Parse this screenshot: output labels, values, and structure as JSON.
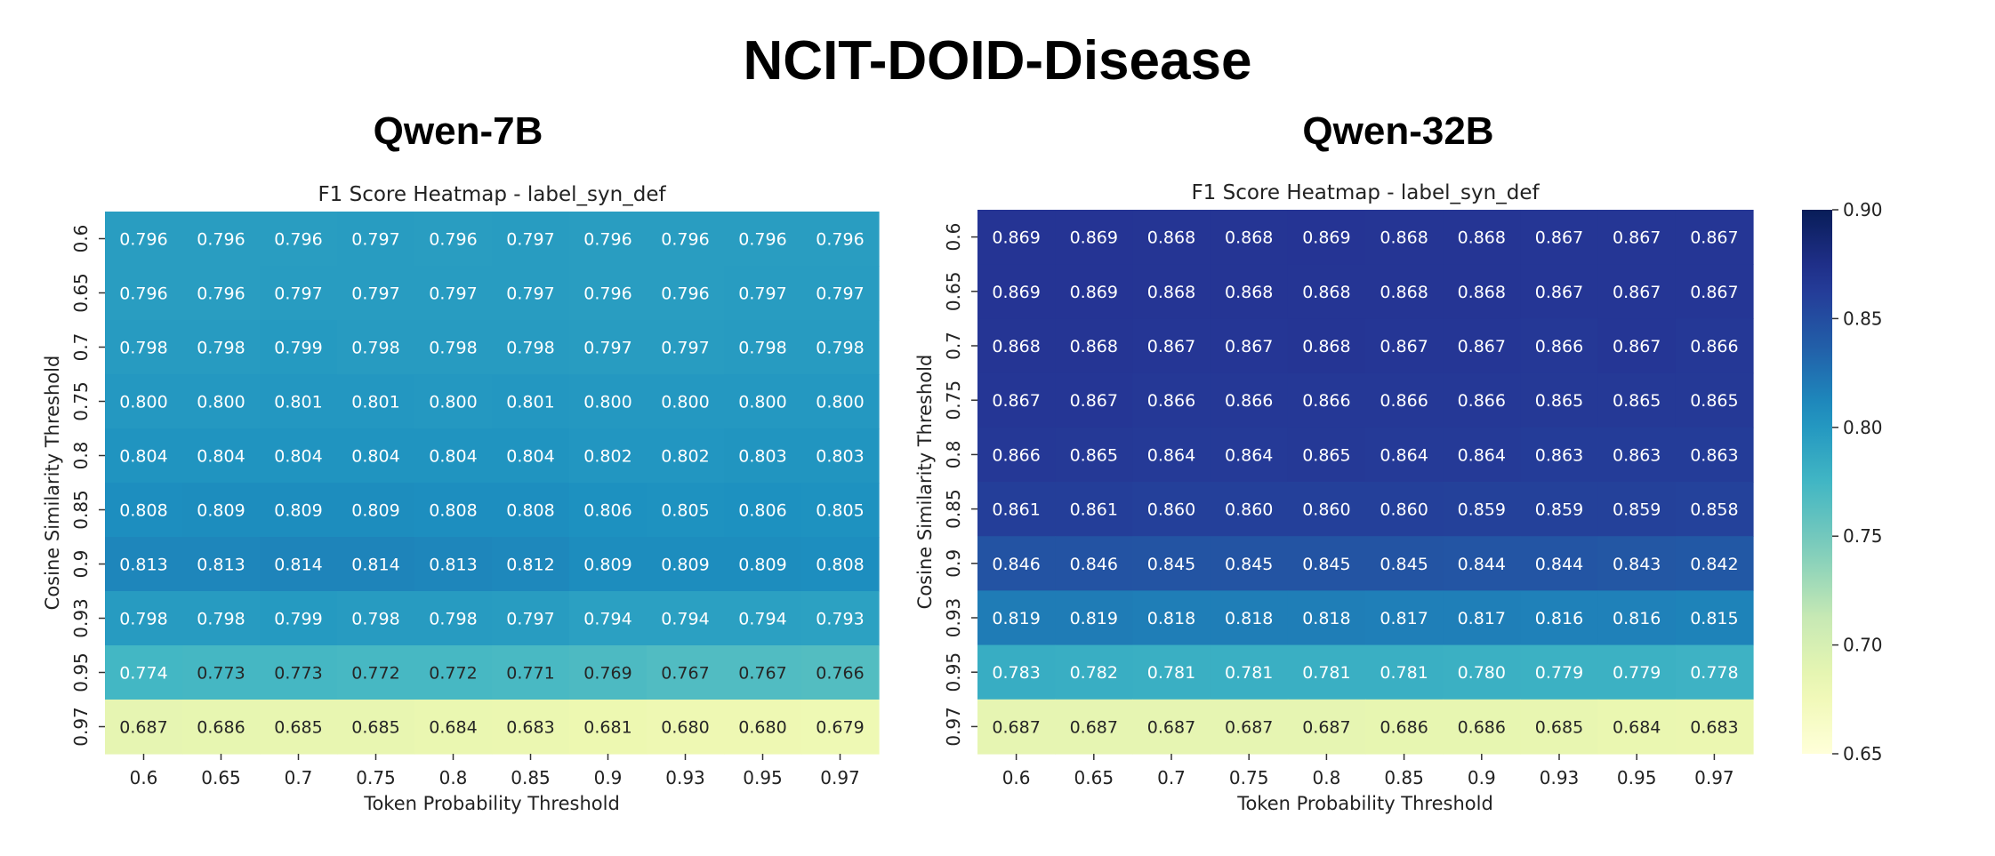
{
  "title": "NCIT-DOID-Disease",
  "chart_data": [
    {
      "type": "heatmap",
      "model": "Qwen-7B",
      "title": "F1 Score Heatmap - label_syn_def",
      "xlabel": "Token Probability Threshold",
      "ylabel": "Cosine Similarity Threshold",
      "x_categories": [
        "0.6",
        "0.65",
        "0.7",
        "0.75",
        "0.8",
        "0.85",
        "0.9",
        "0.93",
        "0.95",
        "0.97"
      ],
      "y_categories": [
        "0.6",
        "0.65",
        "0.7",
        "0.75",
        "0.8",
        "0.85",
        "0.9",
        "0.93",
        "0.95",
        "0.97"
      ],
      "values": [
        [
          0.796,
          0.796,
          0.796,
          0.797,
          0.796,
          0.797,
          0.796,
          0.796,
          0.796,
          0.796
        ],
        [
          0.796,
          0.796,
          0.797,
          0.797,
          0.797,
          0.797,
          0.796,
          0.796,
          0.797,
          0.797
        ],
        [
          0.798,
          0.798,
          0.799,
          0.798,
          0.798,
          0.798,
          0.797,
          0.797,
          0.798,
          0.798
        ],
        [
          0.8,
          0.8,
          0.801,
          0.801,
          0.8,
          0.801,
          0.8,
          0.8,
          0.8,
          0.8
        ],
        [
          0.804,
          0.804,
          0.804,
          0.804,
          0.804,
          0.804,
          0.802,
          0.802,
          0.803,
          0.803
        ],
        [
          0.808,
          0.809,
          0.809,
          0.809,
          0.808,
          0.808,
          0.806,
          0.805,
          0.806,
          0.805
        ],
        [
          0.813,
          0.813,
          0.814,
          0.814,
          0.813,
          0.812,
          0.809,
          0.809,
          0.809,
          0.808
        ],
        [
          0.798,
          0.798,
          0.799,
          0.798,
          0.798,
          0.797,
          0.794,
          0.794,
          0.794,
          0.793
        ],
        [
          0.774,
          0.773,
          0.773,
          0.772,
          0.772,
          0.771,
          0.769,
          0.767,
          0.767,
          0.766
        ],
        [
          0.687,
          0.686,
          0.685,
          0.685,
          0.684,
          0.683,
          0.681,
          0.68,
          0.68,
          0.679
        ]
      ],
      "colormap": "YlGnBu"
    },
    {
      "type": "heatmap",
      "model": "Qwen-32B",
      "title": "F1 Score Heatmap - label_syn_def",
      "xlabel": "Token Probability Threshold",
      "ylabel": "Cosine Similarity Threshold",
      "x_categories": [
        "0.6",
        "0.65",
        "0.7",
        "0.75",
        "0.8",
        "0.85",
        "0.9",
        "0.93",
        "0.95",
        "0.97"
      ],
      "y_categories": [
        "0.6",
        "0.65",
        "0.7",
        "0.75",
        "0.8",
        "0.85",
        "0.9",
        "0.93",
        "0.95",
        "0.97"
      ],
      "values": [
        [
          0.869,
          0.869,
          0.868,
          0.868,
          0.869,
          0.868,
          0.868,
          0.867,
          0.867,
          0.867
        ],
        [
          0.869,
          0.869,
          0.868,
          0.868,
          0.868,
          0.868,
          0.868,
          0.867,
          0.867,
          0.867
        ],
        [
          0.868,
          0.868,
          0.867,
          0.867,
          0.868,
          0.867,
          0.867,
          0.866,
          0.867,
          0.866
        ],
        [
          0.867,
          0.867,
          0.866,
          0.866,
          0.866,
          0.866,
          0.866,
          0.865,
          0.865,
          0.865
        ],
        [
          0.866,
          0.865,
          0.864,
          0.864,
          0.865,
          0.864,
          0.864,
          0.863,
          0.863,
          0.863
        ],
        [
          0.861,
          0.861,
          0.86,
          0.86,
          0.86,
          0.86,
          0.859,
          0.859,
          0.859,
          0.858
        ],
        [
          0.846,
          0.846,
          0.845,
          0.845,
          0.845,
          0.845,
          0.844,
          0.844,
          0.843,
          0.842
        ],
        [
          0.819,
          0.819,
          0.818,
          0.818,
          0.818,
          0.817,
          0.817,
          0.816,
          0.816,
          0.815
        ],
        [
          0.783,
          0.782,
          0.781,
          0.781,
          0.781,
          0.781,
          0.78,
          0.779,
          0.779,
          0.778
        ],
        [
          0.687,
          0.687,
          0.687,
          0.687,
          0.687,
          0.686,
          0.686,
          0.685,
          0.684,
          0.683
        ]
      ],
      "colormap": "YlGnBu",
      "colorbar": {
        "min": 0.65,
        "max": 0.9,
        "ticks": [
          "0.90",
          "0.85",
          "0.80",
          "0.75",
          "0.70",
          "0.65"
        ]
      }
    }
  ]
}
